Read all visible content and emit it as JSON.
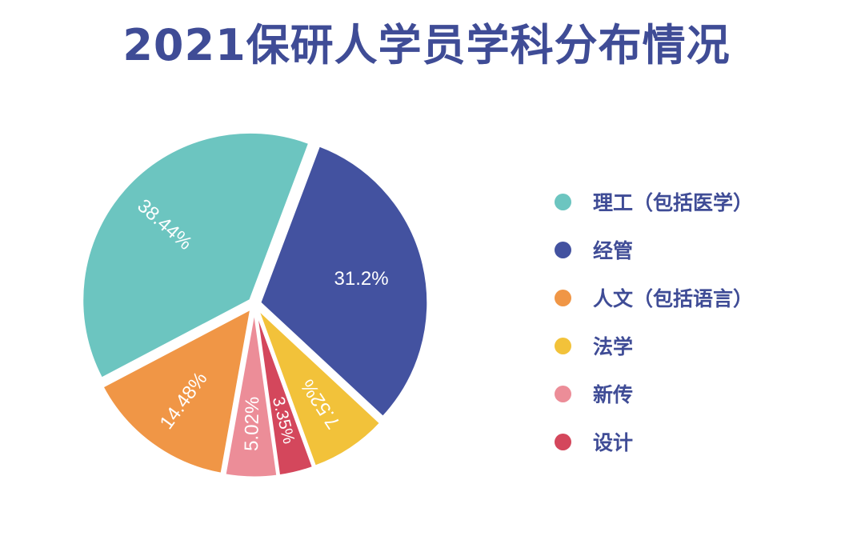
{
  "chart_data": {
    "type": "pie",
    "title": "2021保研人学员学科分布情况",
    "categories": [
      "理工（包括医学）",
      "经管",
      "人文（包括语言）",
      "法学",
      "新传",
      "设计"
    ],
    "values": [
      38.44,
      31.2,
      14.48,
      7.52,
      5.02,
      3.35
    ],
    "labels": [
      "38.44%",
      "31.2%",
      "14.48%",
      "7.52%",
      "5.02%",
      "3.35%"
    ],
    "colors": [
      "#6cc5c0",
      "#4352a0",
      "#f09646",
      "#f2c23a",
      "#ec8d98",
      "#d4475c"
    ],
    "legend_position": "right",
    "slice_order": [
      "设计",
      "新传",
      "人文（包括语言）",
      "理工（包括医学）",
      "经管",
      "法学"
    ]
  },
  "legend": {
    "items": [
      {
        "label": "理工（包括医学）",
        "color": "#6cc5c0"
      },
      {
        "label": "经管",
        "color": "#4352a0"
      },
      {
        "label": "人文（包括语言）",
        "color": "#f09646"
      },
      {
        "label": "法学",
        "color": "#f2c23a"
      },
      {
        "label": "新传",
        "color": "#ec8d98"
      },
      {
        "label": "设计",
        "color": "#d4475c"
      }
    ]
  }
}
